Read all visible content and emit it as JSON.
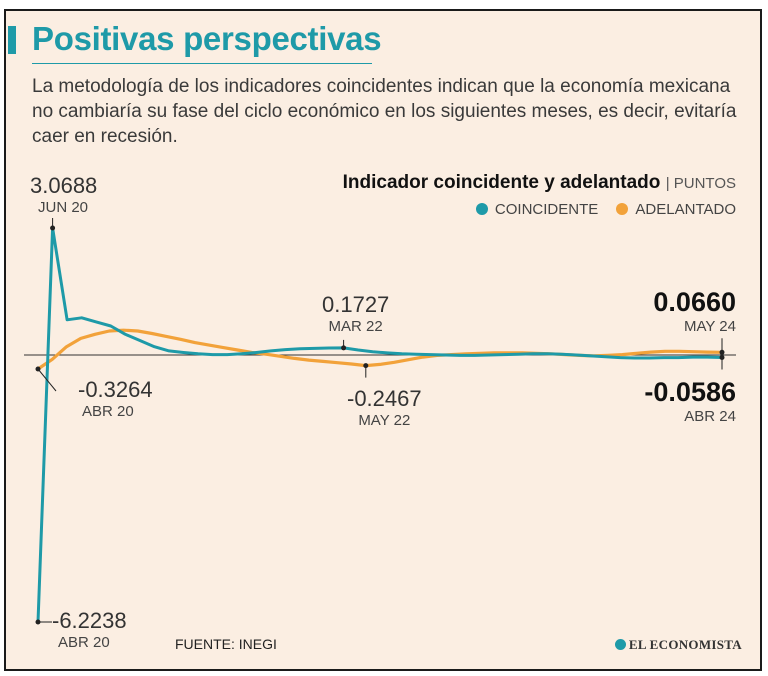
{
  "header": {
    "title": "Positivas perspectivas",
    "description": "La metodología de los indicadores coincidentes indican que la economía mexicana no cambiaría su fase del ciclo económico en los siguientes meses, es decir, evitaría caer en recesión."
  },
  "chart_data": {
    "type": "line",
    "title": "Indicador coincidente y adelantado",
    "units": "| PUNTOS",
    "ylim": [
      -6.4,
      3.4
    ],
    "series": [
      {
        "name": "COINCIDENTE",
        "color": "#1e9aa8",
        "values": [
          -6.2238,
          3.0688,
          0.85,
          0.9,
          0.8,
          0.7,
          0.5,
          0.35,
          0.2,
          0.1,
          0.06,
          0.03,
          0.01,
          0.01,
          0.03,
          0.06,
          0.1,
          0.13,
          0.15,
          0.16,
          0.17,
          0.1727,
          0.12,
          0.08,
          0.05,
          0.03,
          0.02,
          0.01,
          0.0,
          -0.01,
          -0.01,
          0.0,
          0.01,
          0.02,
          0.03,
          0.03,
          0.02,
          0.0,
          -0.02,
          -0.04,
          -0.06,
          -0.07,
          -0.07,
          -0.06,
          -0.06,
          -0.05,
          -0.05,
          -0.0586
        ]
      },
      {
        "name": "ADELANTADO",
        "color": "#f2a23a",
        "values": [
          -0.3264,
          -0.1,
          0.2,
          0.4,
          0.5,
          0.58,
          0.6,
          0.58,
          0.52,
          0.45,
          0.38,
          0.3,
          0.24,
          0.18,
          0.12,
          0.06,
          0.02,
          -0.03,
          -0.08,
          -0.12,
          -0.15,
          -0.18,
          -0.21,
          -0.2467,
          -0.22,
          -0.17,
          -0.11,
          -0.05,
          -0.01,
          0.01,
          0.03,
          0.04,
          0.05,
          0.05,
          0.05,
          0.04,
          0.03,
          0.01,
          -0.01,
          -0.02,
          -0.01,
          0.01,
          0.04,
          0.07,
          0.09,
          0.09,
          0.08,
          0.07,
          0.066
        ]
      }
    ],
    "annotations": [
      {
        "value": "3.0688",
        "period": "JUN 20",
        "series": 0,
        "index": 1
      },
      {
        "value": "-0.3264",
        "period": "ABR 20",
        "series": 1,
        "index": 0
      },
      {
        "value": "-6.2238",
        "period": "ABR 20",
        "series": 0,
        "index": 0
      },
      {
        "value": "0.1727",
        "period": "MAR 22",
        "series": 0,
        "index": 21
      },
      {
        "value": "-0.2467",
        "period": "MAY 22",
        "series": 1,
        "index": 23
      },
      {
        "value": "0.0660",
        "period": "MAY 24",
        "series": 1,
        "index": 48
      },
      {
        "value": "-0.0586",
        "period": "ABR 24",
        "series": 0,
        "index": 47
      }
    ]
  },
  "footer": {
    "source": "FUENTE: INEGI",
    "brand": "EL ECONOMISTA"
  }
}
